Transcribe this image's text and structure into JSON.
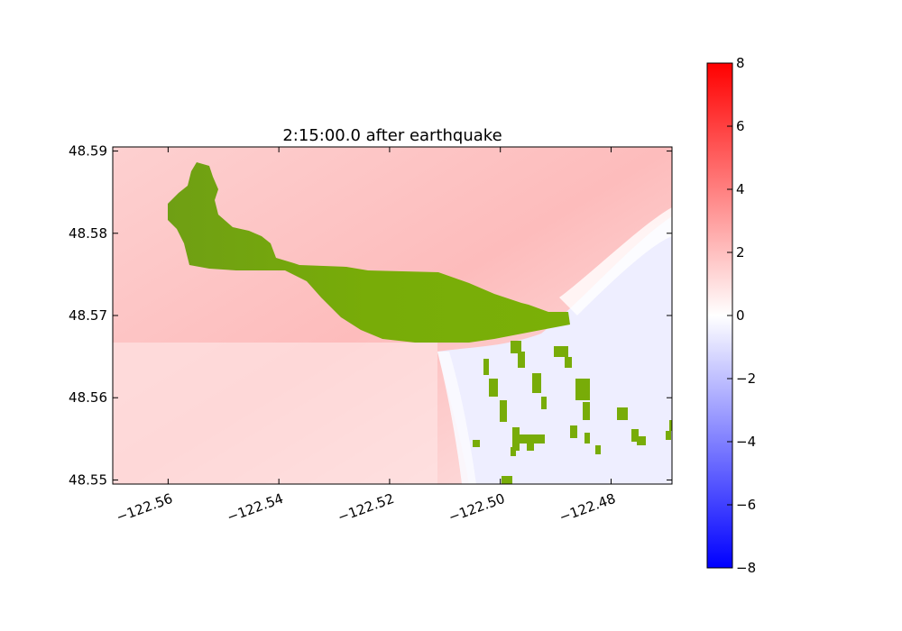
{
  "chart_data": {
    "type": "heatmap",
    "title": "2:15:00.0 after earthquake",
    "xlabel": "",
    "ylabel": "",
    "xlim": [
      -122.57,
      -122.469
    ],
    "ylim": [
      48.5495,
      48.5905
    ],
    "x_ticks": [
      -122.56,
      -122.54,
      -122.52,
      -122.5,
      -122.48
    ],
    "x_tick_labels": [
      "−122.56",
      "−122.54",
      "−122.52",
      "−122.50",
      "−122.48"
    ],
    "y_ticks": [
      48.55,
      48.56,
      48.57,
      48.58,
      48.59
    ],
    "y_tick_labels": [
      "48.55",
      "48.56",
      "48.57",
      "48.58",
      "48.59"
    ],
    "colorbar": {
      "range": [
        -8,
        8
      ],
      "ticks": [
        8,
        6,
        4,
        2,
        0,
        -2,
        -4,
        -6,
        -8
      ],
      "tick_labels": [
        "8",
        "6",
        "4",
        "2",
        "0",
        "−2",
        "−4",
        "−6",
        "−8"
      ],
      "colormap": "bwr",
      "color_low": "#0000ff",
      "color_mid": "#ffffff",
      "color_high": "#ff0000"
    },
    "land_color": "#78ac08",
    "surface_level_regions": [
      {
        "region": "north and west water",
        "value": 1.5
      },
      {
        "region": "southeast water",
        "value": -0.6
      }
    ],
    "grid": false
  }
}
